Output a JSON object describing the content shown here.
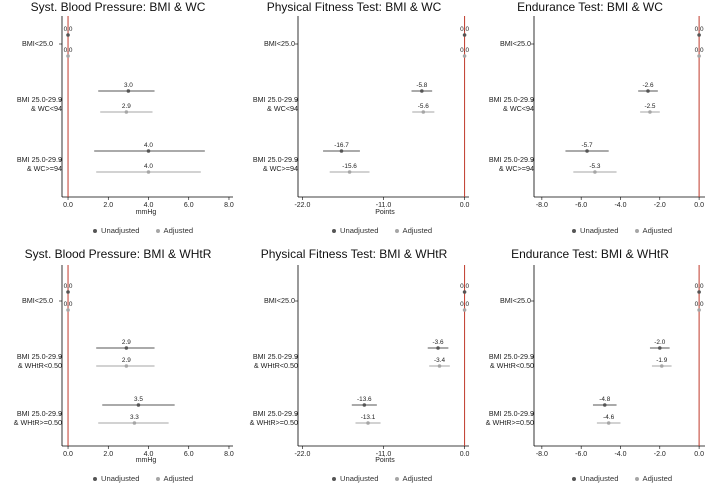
{
  "charts": [
    {
      "title": "Syst. Blood Pressure: BMI & WC",
      "xlabel": "mmHg",
      "categories": [
        {
          "line1": "BMI<25.0",
          "line2": ""
        },
        {
          "line1": "BMI 25.0-29.9",
          "line2": "& WC<94"
        },
        {
          "line1": "BMI 25.0-29.9",
          "line2": "& WC>=94"
        }
      ]
    },
    {
      "title": "Physical Fitness Test: BMI & WC",
      "xlabel": "Points",
      "categories": [
        {
          "line1": "BMI<25.0",
          "line2": ""
        },
        {
          "line1": "BMI 25.0-29.9",
          "line2": "& WC<94"
        },
        {
          "line1": "BMI 25.0-29.9",
          "line2": "& WC>=94"
        }
      ]
    },
    {
      "title": "Endurance Test: BMI & WC",
      "xlabel": "",
      "categories": [
        {
          "line1": "BMI<25.0",
          "line2": ""
        },
        {
          "line1": "BMI 25.0-29.9",
          "line2": "& WC<94"
        },
        {
          "line1": "BMI 25.0-29.9",
          "line2": "& WC>=94"
        }
      ]
    },
    {
      "title": "Syst. Blood Pressure: BMI & WHtR",
      "xlabel": "mmHg",
      "categories": [
        {
          "line1": "BMI<25.0",
          "line2": ""
        },
        {
          "line1": "BMI 25.0-29.9",
          "line2": "& WHtR<0.50"
        },
        {
          "line1": "BMI 25.0-29.9",
          "line2": "& WHtR>=0.50"
        }
      ]
    },
    {
      "title": "Physical Fitness Test: BMI & WHtR",
      "xlabel": "Points",
      "categories": [
        {
          "line1": "BMI<25.0",
          "line2": ""
        },
        {
          "line1": "BMI 25.0-29.9",
          "line2": "& WHtR<0.50"
        },
        {
          "line1": "BMI 25.0-29.9",
          "line2": "& WHtR>=0.50"
        }
      ]
    },
    {
      "title": "Endurance Test: BMI & WHtR",
      "xlabel": "",
      "categories": [
        {
          "line1": "BMI<25.0",
          "line2": ""
        },
        {
          "line1": "BMI 25.0-29.9",
          "line2": "& WHtR<0.50"
        },
        {
          "line1": "BMI 25.0-29.9",
          "line2": "& WHtR>=0.50"
        }
      ]
    }
  ],
  "legend": {
    "unadjusted": "Unadjusted",
    "adjusted": "Adjusted"
  },
  "colors": {
    "unadjusted": "#555555",
    "adjusted": "#a6a6a6",
    "reference_line": "#c0392b",
    "axis": "#000000"
  },
  "chart_data": [
    {
      "type": "forest",
      "title": "Syst. Blood Pressure: BMI & WC",
      "xlabel": "mmHg",
      "xlim": [
        -0.3,
        8.2
      ],
      "xticks": [
        "0.0",
        "2.0",
        "4.0",
        "6.0",
        "8.0"
      ],
      "reference": 0,
      "categories": [
        "BMI<25.0",
        "BMI 25.0-29.9 & WC<94",
        "BMI 25.0-29.9 & WC>=94"
      ],
      "series": [
        {
          "name": "Unadjusted",
          "values": [
            0.0,
            3.0,
            4.0
          ],
          "lower": [
            0.0,
            1.5,
            1.3
          ],
          "upper": [
            0.0,
            4.3,
            6.8
          ]
        },
        {
          "name": "Adjusted",
          "values": [
            0.0,
            2.9,
            4.0
          ],
          "lower": [
            0.0,
            1.6,
            1.4
          ],
          "upper": [
            0.0,
            4.2,
            6.6
          ]
        }
      ]
    },
    {
      "type": "forest",
      "title": "Physical Fitness Test: BMI & WC",
      "xlabel": "Points",
      "xlim": [
        -22.6,
        0.6
      ],
      "xticks": [
        "-22.0",
        "-11.0",
        "0.0"
      ],
      "reference": 0,
      "categories": [
        "BMI<25.0",
        "BMI 25.0-29.9 & WC<94",
        "BMI 25.0-29.9 & WC>=94"
      ],
      "series": [
        {
          "name": "Unadjusted",
          "values": [
            0.0,
            -5.8,
            -16.7
          ],
          "lower": [
            0.0,
            -7.2,
            -19.2
          ],
          "upper": [
            0.0,
            -4.4,
            -14.2
          ]
        },
        {
          "name": "Adjusted",
          "values": [
            0.0,
            -5.6,
            -15.6
          ],
          "lower": [
            0.0,
            -7.1,
            -18.3
          ],
          "upper": [
            0.0,
            -4.1,
            -12.9
          ]
        }
      ]
    },
    {
      "type": "forest",
      "title": "Endurance Test: BMI & WC",
      "xlabel": "",
      "xlim": [
        -8.4,
        0.3
      ],
      "xticks": [
        "-8.0",
        "-6.0",
        "-4.0",
        "-2.0",
        "0.0"
      ],
      "reference": 0,
      "categories": [
        "BMI<25.0",
        "BMI 25.0-29.9 & WC<94",
        "BMI 25.0-29.9 & WC>=94"
      ],
      "series": [
        {
          "name": "Unadjusted",
          "values": [
            0.0,
            -2.6,
            -5.7
          ],
          "lower": [
            0.0,
            -3.1,
            -6.8
          ],
          "upper": [
            0.0,
            -2.1,
            -4.6
          ]
        },
        {
          "name": "Adjusted",
          "values": [
            0.0,
            -2.5,
            -5.3
          ],
          "lower": [
            0.0,
            -3.0,
            -6.4
          ],
          "upper": [
            0.0,
            -2.0,
            -4.2
          ]
        }
      ]
    },
    {
      "type": "forest",
      "title": "Syst. Blood Pressure: BMI & WHtR",
      "xlabel": "mmHg",
      "xlim": [
        -0.3,
        8.2
      ],
      "xticks": [
        "0.0",
        "2.0",
        "4.0",
        "6.0",
        "8.0"
      ],
      "reference": 0,
      "categories": [
        "BMI<25.0",
        "BMI 25.0-29.9 & WHtR<0.50",
        "BMI 25.0-29.9 & WHtR>=0.50"
      ],
      "series": [
        {
          "name": "Unadjusted",
          "values": [
            0.0,
            2.9,
            3.5
          ],
          "lower": [
            0.0,
            1.4,
            1.7
          ],
          "upper": [
            0.0,
            4.3,
            5.3
          ]
        },
        {
          "name": "Adjusted",
          "values": [
            0.0,
            2.9,
            3.3
          ],
          "lower": [
            0.0,
            1.4,
            1.5
          ],
          "upper": [
            0.0,
            4.3,
            5.0
          ]
        }
      ]
    },
    {
      "type": "forest",
      "title": "Physical Fitness Test: BMI & WHtR",
      "xlabel": "Points",
      "xlim": [
        -22.6,
        0.6
      ],
      "xticks": [
        "-22.0",
        "-11.0",
        "0.0"
      ],
      "reference": 0,
      "categories": [
        "BMI<25.0",
        "BMI 25.0-29.9 & WHtR<0.50",
        "BMI 25.0-29.9 & WHtR>=0.50"
      ],
      "series": [
        {
          "name": "Unadjusted",
          "values": [
            0.0,
            -3.6,
            -13.6
          ],
          "lower": [
            0.0,
            -5.0,
            -15.3
          ],
          "upper": [
            0.0,
            -2.2,
            -11.9
          ]
        },
        {
          "name": "Adjusted",
          "values": [
            0.0,
            -3.4,
            -13.1
          ],
          "lower": [
            0.0,
            -4.8,
            -14.8
          ],
          "upper": [
            0.0,
            -2.0,
            -11.4
          ]
        }
      ]
    },
    {
      "type": "forest",
      "title": "Endurance Test: BMI & WHtR",
      "xlabel": "",
      "xlim": [
        -8.4,
        0.3
      ],
      "xticks": [
        "-8.0",
        "-6.0",
        "-4.0",
        "-2.0",
        "0.0"
      ],
      "reference": 0,
      "categories": [
        "BMI<25.0",
        "BMI 25.0-29.9 & WHtR<0.50",
        "BMI 25.0-29.9 & WHtR>=0.50"
      ],
      "series": [
        {
          "name": "Unadjusted",
          "values": [
            0.0,
            -2.0,
            -4.8
          ],
          "lower": [
            0.0,
            -2.5,
            -5.4
          ],
          "upper": [
            0.0,
            -1.5,
            -4.2
          ]
        },
        {
          "name": "Adjusted",
          "values": [
            0.0,
            -1.9,
            -4.6
          ],
          "lower": [
            0.0,
            -2.4,
            -5.2
          ],
          "upper": [
            0.0,
            -1.4,
            -4.0
          ]
        }
      ]
    }
  ]
}
